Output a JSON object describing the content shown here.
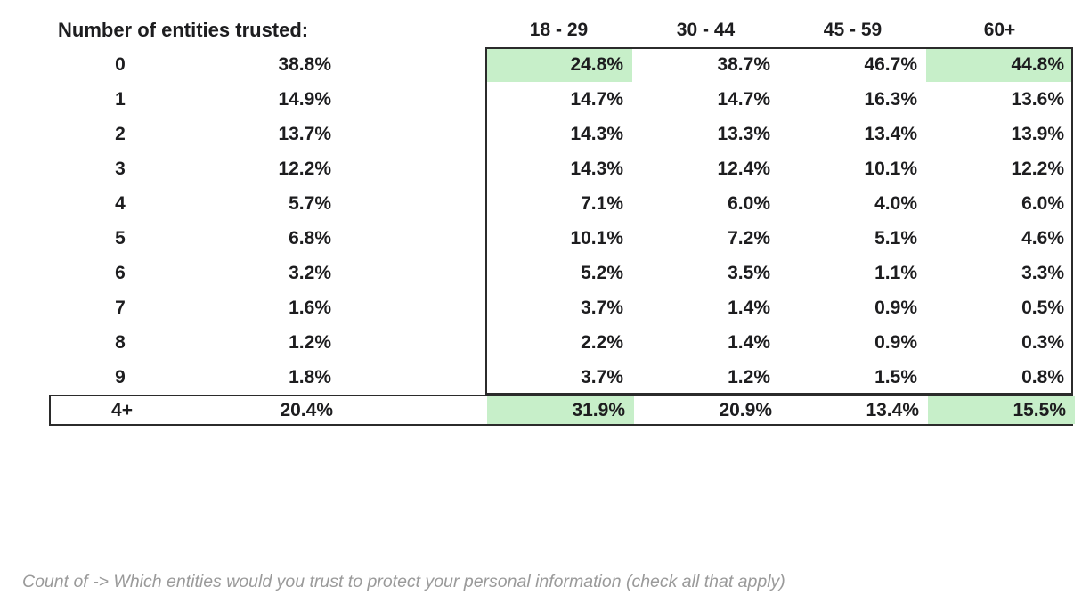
{
  "table": {
    "header_label": "Number of entities trusted:",
    "age_headers": [
      "18 - 29",
      "30 - 44",
      "45 - 59",
      "60+"
    ],
    "rows": [
      {
        "count": "0",
        "overall": "38.8%",
        "values": [
          "24.8%",
          "38.7%",
          "46.7%",
          "44.8%"
        ],
        "highlight": [
          0,
          3
        ]
      },
      {
        "count": "1",
        "overall": "14.9%",
        "values": [
          "14.7%",
          "14.7%",
          "16.3%",
          "13.6%"
        ],
        "highlight": []
      },
      {
        "count": "2",
        "overall": "13.7%",
        "values": [
          "14.3%",
          "13.3%",
          "13.4%",
          "13.9%"
        ],
        "highlight": []
      },
      {
        "count": "3",
        "overall": "12.2%",
        "values": [
          "14.3%",
          "12.4%",
          "10.1%",
          "12.2%"
        ],
        "highlight": []
      },
      {
        "count": "4",
        "overall": "5.7%",
        "values": [
          "7.1%",
          "6.0%",
          "4.0%",
          "6.0%"
        ],
        "highlight": []
      },
      {
        "count": "5",
        "overall": "6.8%",
        "values": [
          "10.1%",
          "7.2%",
          "5.1%",
          "4.6%"
        ],
        "highlight": []
      },
      {
        "count": "6",
        "overall": "3.2%",
        "values": [
          "5.2%",
          "3.5%",
          "1.1%",
          "3.3%"
        ],
        "highlight": []
      },
      {
        "count": "7",
        "overall": "1.6%",
        "values": [
          "3.7%",
          "1.4%",
          "0.9%",
          "0.5%"
        ],
        "highlight": []
      },
      {
        "count": "8",
        "overall": "1.2%",
        "values": [
          "2.2%",
          "1.4%",
          "0.9%",
          "0.3%"
        ],
        "highlight": []
      },
      {
        "count": "9",
        "overall": "1.8%",
        "values": [
          "3.7%",
          "1.2%",
          "1.5%",
          "0.8%"
        ],
        "highlight": []
      }
    ],
    "summary_row": {
      "count": "4+",
      "overall": "20.4%",
      "values": [
        "31.9%",
        "20.9%",
        "13.4%",
        "15.5%"
      ],
      "highlight": [
        0,
        3
      ]
    }
  },
  "caption": "Count of -> Which entities would you trust to protect your personal information (check all that apply)",
  "colors": {
    "highlight_green": "#c7efc9",
    "border": "#2b2b2b",
    "caption_gray": "#9a9a9a"
  },
  "chart_data": {
    "type": "table",
    "title": "Number of entities trusted:",
    "columns": [
      "Number of entities trusted:",
      "",
      "18 - 29",
      "30 - 44",
      "45 - 59",
      "60+"
    ],
    "rows": [
      [
        "0",
        "38.8%",
        "24.8%",
        "38.7%",
        "46.7%",
        "44.8%"
      ],
      [
        "1",
        "14.9%",
        "14.7%",
        "14.7%",
        "16.3%",
        "13.6%"
      ],
      [
        "2",
        "13.7%",
        "14.3%",
        "13.3%",
        "13.4%",
        "13.9%"
      ],
      [
        "3",
        "12.2%",
        "14.3%",
        "12.4%",
        "10.1%",
        "12.2%"
      ],
      [
        "4",
        "5.7%",
        "7.1%",
        "6.0%",
        "4.0%",
        "6.0%"
      ],
      [
        "5",
        "6.8%",
        "10.1%",
        "7.2%",
        "5.1%",
        "4.6%"
      ],
      [
        "6",
        "3.2%",
        "5.2%",
        "3.5%",
        "1.1%",
        "3.3%"
      ],
      [
        "7",
        "1.6%",
        "3.7%",
        "1.4%",
        "0.9%",
        "0.5%"
      ],
      [
        "8",
        "1.2%",
        "2.2%",
        "1.4%",
        "0.9%",
        "0.3%"
      ],
      [
        "9",
        "1.8%",
        "3.7%",
        "1.2%",
        "1.5%",
        "0.8%"
      ],
      [
        "4+",
        "20.4%",
        "31.9%",
        "20.9%",
        "13.4%",
        "15.5%"
      ]
    ],
    "highlighted_cells": [
      {
        "row": "0",
        "column": "18 - 29",
        "value": "24.8%"
      },
      {
        "row": "0",
        "column": "60+",
        "value": "44.8%"
      },
      {
        "row": "4+",
        "column": "18 - 29",
        "value": "31.9%"
      },
      {
        "row": "4+",
        "column": "60+",
        "value": "15.5%"
      }
    ],
    "caption": "Count of -> Which entities would you trust to protect your personal information (check all that apply)",
    "legend_position": "none",
    "grid": false
  }
}
